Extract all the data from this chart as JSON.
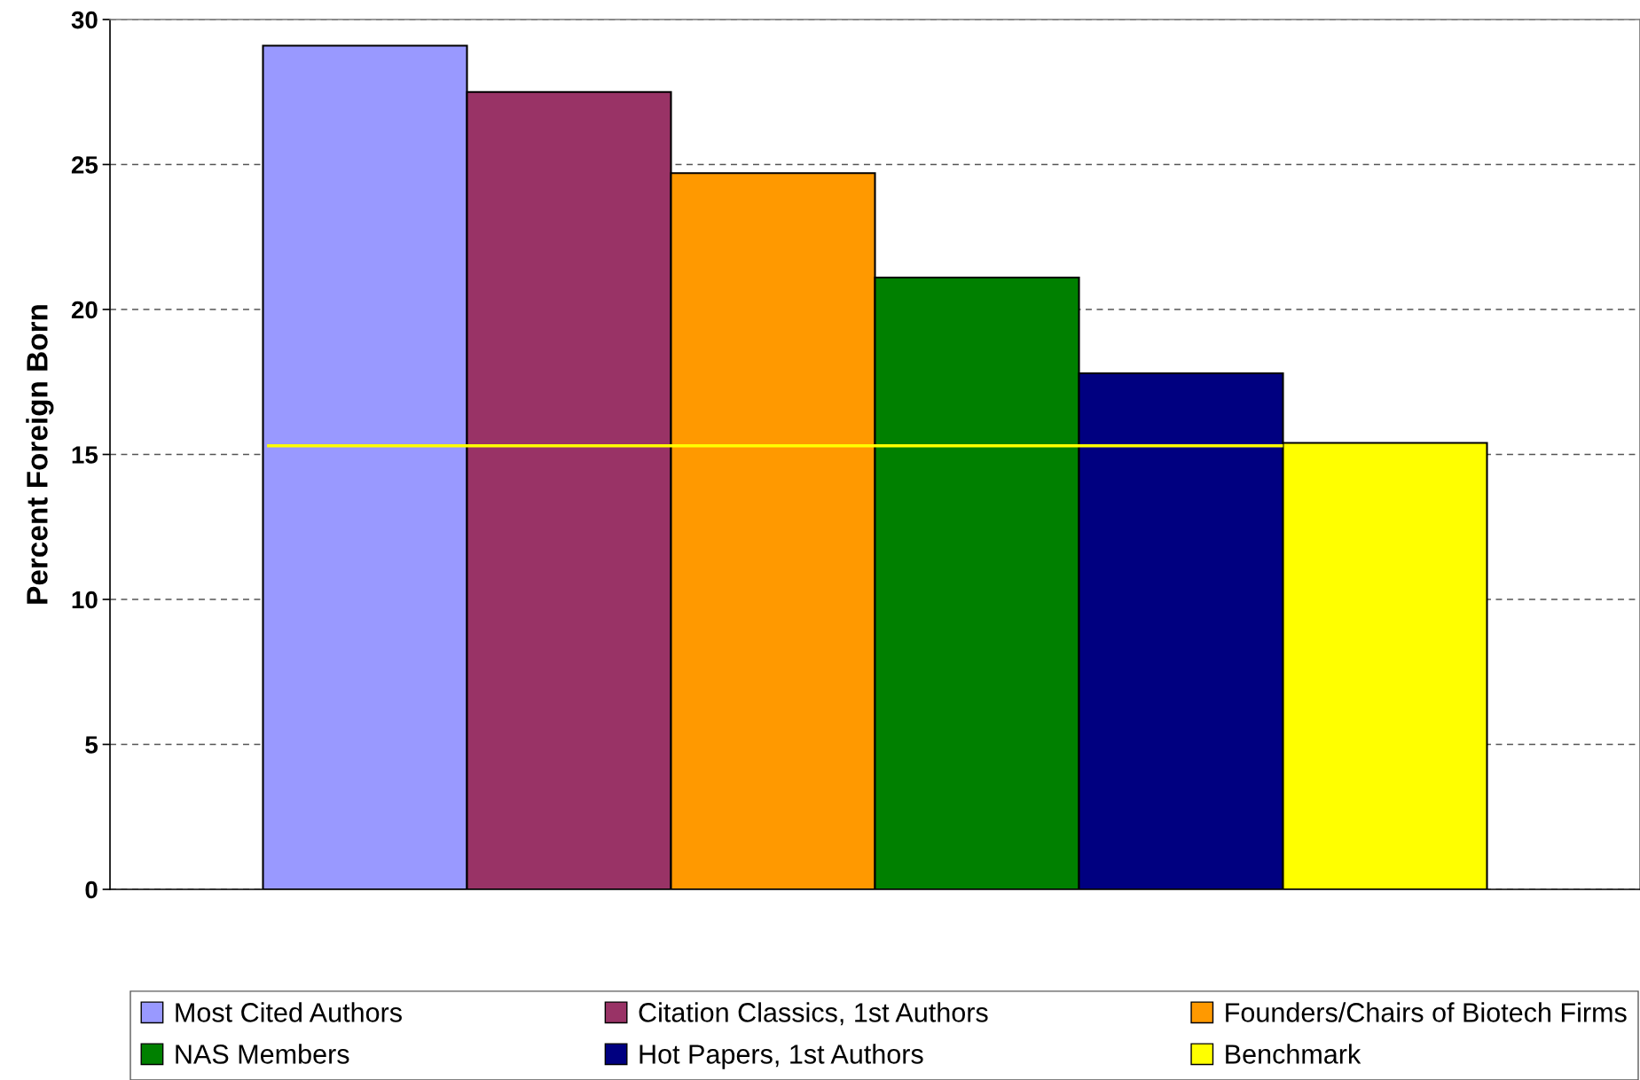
{
  "chart_data": {
    "type": "bar",
    "ylabel": "Percent Foreign Born",
    "categories": [
      null
    ],
    "series": [
      {
        "name": "Most Cited Authors",
        "color": "#9999ff",
        "values": [
          29.1
        ]
      },
      {
        "name": "Citation Classics, 1st Authors",
        "color": "#993366",
        "values": [
          27.5
        ]
      },
      {
        "name": "Founders/Chairs of Biotech Firms",
        "color": "#ff9900",
        "values": [
          24.7
        ]
      },
      {
        "name": "NAS Members",
        "color": "#008000",
        "values": [
          21.1
        ]
      },
      {
        "name": "Hot Papers, 1st Authors",
        "color": "#000080",
        "values": [
          17.8
        ]
      },
      {
        "name": "Benchmark",
        "color": "#ffff00",
        "values": [
          15.4
        ]
      }
    ],
    "ref_lines": [
      {
        "axis": "y",
        "value": 15.3,
        "color": "#ffff00"
      }
    ],
    "ylim": [
      0,
      30
    ],
    "yticks": [
      0,
      5,
      10,
      15,
      20,
      25,
      30
    ],
    "grid": "y",
    "legend": "bottom"
  }
}
